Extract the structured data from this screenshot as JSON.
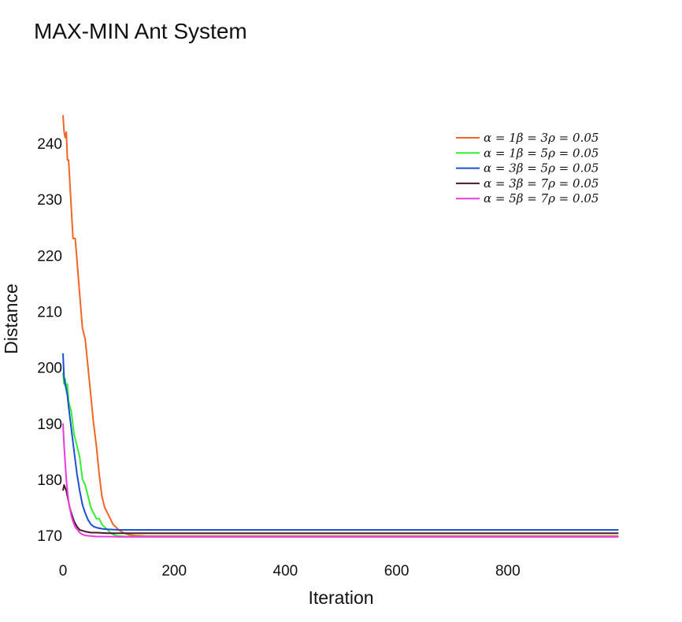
{
  "chart_data": {
    "type": "line",
    "title": "MAX-MIN Ant System",
    "xlabel": "Iteration",
    "ylabel": "Distance",
    "xlim": [
      0,
      1000
    ],
    "ylim": [
      166.5,
      248
    ],
    "xticks": [
      0,
      200,
      400,
      600,
      800
    ],
    "yticks": [
      170,
      180,
      190,
      200,
      210,
      220,
      230,
      240
    ],
    "grid": false,
    "legend_position": "top-right",
    "series": [
      {
        "name": "α = 1β = 3ρ = 0.05",
        "color": "#f26522",
        "x": [
          0,
          2,
          4,
          6,
          8,
          10,
          14,
          18,
          22,
          26,
          30,
          35,
          40,
          45,
          50,
          55,
          60,
          65,
          70,
          75,
          80,
          85,
          90,
          95,
          100,
          110,
          120,
          130,
          140,
          150,
          200,
          400,
          600,
          800,
          999
        ],
        "y": [
          245,
          242,
          241,
          242,
          237,
          237,
          230,
          223,
          223,
          218,
          213,
          207,
          205,
          200,
          195,
          190,
          186,
          181,
          177,
          175,
          174,
          173,
          172,
          171.5,
          171,
          170.4,
          170.1,
          170,
          169.95,
          169.9,
          169.9,
          169.9,
          169.9,
          169.9,
          169.9
        ]
      },
      {
        "name": "α = 1β = 5ρ = 0.05",
        "color": "#33ee33",
        "x": [
          0,
          2,
          4,
          6,
          8,
          10,
          15,
          20,
          25,
          30,
          35,
          40,
          45,
          50,
          55,
          60,
          65,
          70,
          75,
          80,
          85,
          90,
          95,
          100,
          110,
          120,
          150,
          200,
          400,
          600,
          800,
          999
        ],
        "y": [
          199,
          197,
          198,
          196,
          197,
          194,
          192,
          188,
          186,
          184,
          180,
          179,
          177,
          175,
          174,
          173,
          173,
          172,
          171.5,
          171,
          170.5,
          170.2,
          170,
          169.9,
          169.85,
          169.8,
          169.8,
          169.8,
          169.8,
          169.8,
          169.8,
          169.8
        ]
      },
      {
        "name": "α = 3β = 5ρ = 0.05",
        "color": "#1a4fd6",
        "x": [
          0,
          2,
          4,
          6,
          8,
          10,
          15,
          20,
          25,
          30,
          35,
          40,
          45,
          50,
          55,
          60,
          70,
          80,
          100,
          150,
          200,
          400,
          600,
          800,
          999
        ],
        "y": [
          202.5,
          198,
          197,
          196,
          195,
          193,
          189,
          185,
          181,
          178,
          175.5,
          174,
          172.8,
          172,
          171.6,
          171.4,
          171.2,
          171.1,
          171,
          171,
          171,
          171,
          171,
          171,
          171
        ]
      },
      {
        "name": "α = 3β = 7ρ = 0.05",
        "color": "#4a1a24",
        "x": [
          0,
          2,
          4,
          6,
          8,
          10,
          12,
          15,
          20,
          25,
          30,
          40,
          50,
          60,
          80,
          100,
          150,
          200,
          400,
          600,
          800,
          999
        ],
        "y": [
          178,
          179,
          178.5,
          178,
          177,
          176,
          175,
          174,
          172.5,
          171.6,
          171,
          170.7,
          170.5,
          170.5,
          170.4,
          170.4,
          170.4,
          170.4,
          170.4,
          170.4,
          170.4,
          170.4
        ]
      },
      {
        "name": "α = 5β = 7ρ = 0.05",
        "color": "#e83ae0",
        "x": [
          0,
          2,
          4,
          6,
          8,
          10,
          12,
          15,
          18,
          22,
          26,
          30,
          35,
          40,
          50,
          60,
          80,
          100,
          150,
          200,
          400,
          600,
          800,
          999
        ],
        "y": [
          190,
          186,
          183,
          180,
          178,
          176,
          175,
          173.5,
          172.5,
          171.5,
          171,
          170.5,
          170.2,
          170,
          169.9,
          169.8,
          169.8,
          169.75,
          169.75,
          169.75,
          169.75,
          169.75,
          169.75,
          169.75
        ]
      }
    ]
  }
}
